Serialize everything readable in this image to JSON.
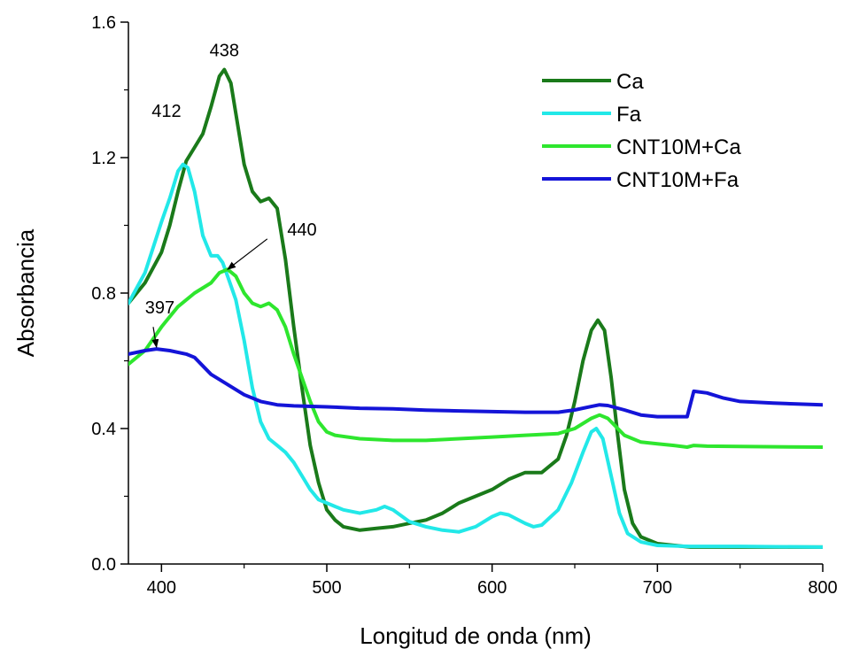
{
  "chart_data": {
    "type": "line",
    "xlabel": "Longitud de onda (nm)",
    "ylabel": "Absorbancia",
    "xlim": [
      380,
      800
    ],
    "ylim": [
      0.0,
      1.6
    ],
    "xticks": [
      400,
      500,
      600,
      700,
      800
    ],
    "xtick_labels": [
      "400",
      "500",
      "600",
      "700",
      "800"
    ],
    "yticks": [
      0.0,
      0.4,
      0.8,
      1.2,
      1.6
    ],
    "ytick_labels": [
      "0.0",
      "0.4",
      "0.8",
      "1.2",
      "1.6"
    ],
    "grid": false,
    "legend_position": "top-right",
    "series": [
      {
        "name": "Ca",
        "color": "#1a7a1a",
        "points": [
          [
            380,
            0.77
          ],
          [
            390,
            0.83
          ],
          [
            400,
            0.92
          ],
          [
            405,
            1.0
          ],
          [
            410,
            1.1
          ],
          [
            415,
            1.19
          ],
          [
            420,
            1.23
          ],
          [
            425,
            1.27
          ],
          [
            430,
            1.35
          ],
          [
            435,
            1.44
          ],
          [
            438,
            1.46
          ],
          [
            442,
            1.42
          ],
          [
            446,
            1.3
          ],
          [
            450,
            1.18
          ],
          [
            455,
            1.1
          ],
          [
            460,
            1.07
          ],
          [
            465,
            1.08
          ],
          [
            470,
            1.05
          ],
          [
            475,
            0.9
          ],
          [
            480,
            0.7
          ],
          [
            485,
            0.52
          ],
          [
            490,
            0.35
          ],
          [
            495,
            0.24
          ],
          [
            500,
            0.16
          ],
          [
            505,
            0.13
          ],
          [
            510,
            0.11
          ],
          [
            520,
            0.1
          ],
          [
            530,
            0.105
          ],
          [
            540,
            0.11
          ],
          [
            550,
            0.12
          ],
          [
            560,
            0.13
          ],
          [
            570,
            0.15
          ],
          [
            580,
            0.18
          ],
          [
            590,
            0.2
          ],
          [
            600,
            0.22
          ],
          [
            610,
            0.25
          ],
          [
            615,
            0.26
          ],
          [
            620,
            0.27
          ],
          [
            630,
            0.27
          ],
          [
            640,
            0.31
          ],
          [
            645,
            0.38
          ],
          [
            650,
            0.48
          ],
          [
            655,
            0.6
          ],
          [
            660,
            0.69
          ],
          [
            664,
            0.72
          ],
          [
            668,
            0.69
          ],
          [
            672,
            0.55
          ],
          [
            676,
            0.38
          ],
          [
            680,
            0.22
          ],
          [
            685,
            0.12
          ],
          [
            690,
            0.08
          ],
          [
            700,
            0.06
          ],
          [
            720,
            0.05
          ],
          [
            750,
            0.05
          ],
          [
            800,
            0.05
          ]
        ]
      },
      {
        "name": "Fa",
        "color": "#22e8e8",
        "points": [
          [
            380,
            0.77
          ],
          [
            390,
            0.86
          ],
          [
            400,
            1.01
          ],
          [
            405,
            1.08
          ],
          [
            410,
            1.16
          ],
          [
            413,
            1.18
          ],
          [
            416,
            1.17
          ],
          [
            420,
            1.1
          ],
          [
            425,
            0.97
          ],
          [
            430,
            0.91
          ],
          [
            434,
            0.91
          ],
          [
            437,
            0.89
          ],
          [
            440,
            0.85
          ],
          [
            445,
            0.78
          ],
          [
            450,
            0.66
          ],
          [
            455,
            0.52
          ],
          [
            460,
            0.42
          ],
          [
            465,
            0.37
          ],
          [
            470,
            0.35
          ],
          [
            475,
            0.33
          ],
          [
            480,
            0.3
          ],
          [
            485,
            0.26
          ],
          [
            490,
            0.22
          ],
          [
            495,
            0.19
          ],
          [
            500,
            0.18
          ],
          [
            505,
            0.17
          ],
          [
            510,
            0.16
          ],
          [
            520,
            0.15
          ],
          [
            530,
            0.16
          ],
          [
            535,
            0.17
          ],
          [
            540,
            0.16
          ],
          [
            550,
            0.125
          ],
          [
            560,
            0.11
          ],
          [
            570,
            0.1
          ],
          [
            580,
            0.095
          ],
          [
            590,
            0.11
          ],
          [
            600,
            0.14
          ],
          [
            605,
            0.15
          ],
          [
            610,
            0.145
          ],
          [
            620,
            0.12
          ],
          [
            625,
            0.11
          ],
          [
            630,
            0.115
          ],
          [
            640,
            0.16
          ],
          [
            648,
            0.24
          ],
          [
            655,
            0.33
          ],
          [
            660,
            0.39
          ],
          [
            663,
            0.4
          ],
          [
            667,
            0.37
          ],
          [
            672,
            0.26
          ],
          [
            677,
            0.15
          ],
          [
            682,
            0.09
          ],
          [
            690,
            0.065
          ],
          [
            700,
            0.055
          ],
          [
            720,
            0.052
          ],
          [
            750,
            0.052
          ],
          [
            800,
            0.05
          ]
        ]
      },
      {
        "name": "CNT10M+Ca",
        "color": "#2ee62e",
        "points": [
          [
            380,
            0.59
          ],
          [
            390,
            0.63
          ],
          [
            400,
            0.7
          ],
          [
            410,
            0.76
          ],
          [
            420,
            0.8
          ],
          [
            430,
            0.83
          ],
          [
            435,
            0.86
          ],
          [
            440,
            0.87
          ],
          [
            445,
            0.85
          ],
          [
            450,
            0.8
          ],
          [
            455,
            0.77
          ],
          [
            460,
            0.76
          ],
          [
            465,
            0.77
          ],
          [
            470,
            0.75
          ],
          [
            475,
            0.7
          ],
          [
            480,
            0.62
          ],
          [
            485,
            0.55
          ],
          [
            490,
            0.48
          ],
          [
            495,
            0.42
          ],
          [
            500,
            0.39
          ],
          [
            505,
            0.38
          ],
          [
            520,
            0.37
          ],
          [
            540,
            0.365
          ],
          [
            560,
            0.365
          ],
          [
            580,
            0.37
          ],
          [
            600,
            0.375
          ],
          [
            620,
            0.38
          ],
          [
            640,
            0.385
          ],
          [
            650,
            0.4
          ],
          [
            660,
            0.43
          ],
          [
            665,
            0.44
          ],
          [
            670,
            0.43
          ],
          [
            680,
            0.38
          ],
          [
            690,
            0.36
          ],
          [
            700,
            0.355
          ],
          [
            710,
            0.35
          ],
          [
            718,
            0.345
          ],
          [
            722,
            0.35
          ],
          [
            730,
            0.348
          ],
          [
            750,
            0.347
          ],
          [
            800,
            0.345
          ]
        ]
      },
      {
        "name": "CNT10M+Fa",
        "color": "#1414d8",
        "points": [
          [
            380,
            0.62
          ],
          [
            390,
            0.63
          ],
          [
            397,
            0.635
          ],
          [
            405,
            0.63
          ],
          [
            415,
            0.62
          ],
          [
            420,
            0.61
          ],
          [
            430,
            0.56
          ],
          [
            440,
            0.53
          ],
          [
            450,
            0.5
          ],
          [
            460,
            0.48
          ],
          [
            470,
            0.47
          ],
          [
            480,
            0.467
          ],
          [
            500,
            0.464
          ],
          [
            520,
            0.46
          ],
          [
            540,
            0.458
          ],
          [
            560,
            0.454
          ],
          [
            580,
            0.452
          ],
          [
            600,
            0.45
          ],
          [
            620,
            0.448
          ],
          [
            640,
            0.448
          ],
          [
            650,
            0.455
          ],
          [
            660,
            0.465
          ],
          [
            665,
            0.47
          ],
          [
            670,
            0.468
          ],
          [
            680,
            0.455
          ],
          [
            690,
            0.44
          ],
          [
            700,
            0.435
          ],
          [
            710,
            0.435
          ],
          [
            718,
            0.435
          ],
          [
            722,
            0.51
          ],
          [
            730,
            0.505
          ],
          [
            740,
            0.49
          ],
          [
            750,
            0.48
          ],
          [
            770,
            0.475
          ],
          [
            800,
            0.47
          ]
        ]
      }
    ],
    "annotations": [
      {
        "text": "438",
        "x": 438,
        "y": 1.5,
        "arrow": false
      },
      {
        "text": "412",
        "x": 403,
        "y": 1.32,
        "arrow": false
      },
      {
        "text": "440",
        "x": 485,
        "y": 0.97,
        "arrow": true,
        "arrow_to": [
          440,
          0.87
        ],
        "arrow_from": [
          464,
          0.96
        ]
      },
      {
        "text": "397",
        "x": 399,
        "y": 0.74,
        "arrow": true,
        "arrow_to": [
          397,
          0.64
        ],
        "arrow_from": [
          395,
          0.7
        ]
      }
    ]
  }
}
